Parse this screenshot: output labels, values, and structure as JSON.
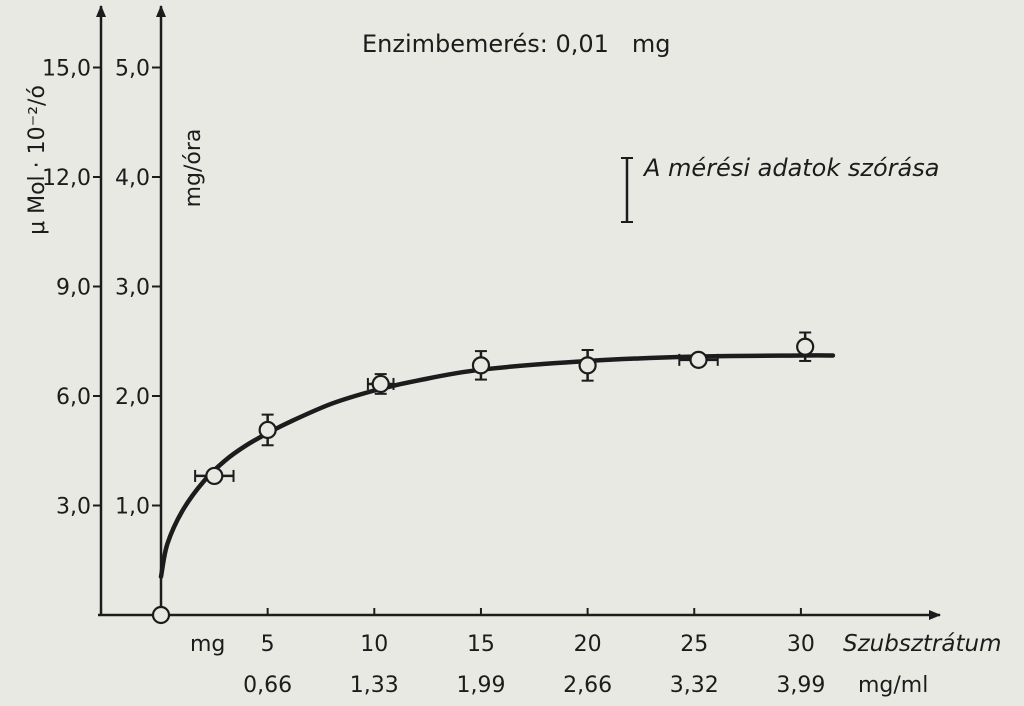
{
  "chart_data": {
    "type": "scatter",
    "title": "Enzimbemerés: 0,01   mg",
    "legend": {
      "label": "A mérési adatok szórása",
      "placement": "top-right"
    },
    "x_axis": {
      "label": "Szubsztrátum",
      "unit_label_1": "mg",
      "unit_label_2": "mg/ml",
      "ticks_mg": [
        "5",
        "10",
        "15",
        "20",
        "25",
        "30"
      ],
      "ticks_mgml": [
        "0,66",
        "1,33",
        "1,99",
        "2,66",
        "3,32",
        "3,99"
      ],
      "range": [
        0,
        35
      ]
    },
    "y_axis_outer": {
      "label": "μ Mol · 10⁻²/ó",
      "ticks": [
        "3,0",
        "6,0",
        "9,0",
        "12,0",
        "15,0"
      ]
    },
    "y_axis_inner": {
      "label": "mg/óra",
      "ticks": [
        "1,0",
        "2,0",
        "3,0",
        "4,0",
        "5,0"
      ],
      "range": [
        0,
        5.5
      ]
    },
    "series": [
      {
        "points": [
          {
            "x": 0,
            "y": 0
          },
          {
            "x": 2.5,
            "y": 1.27,
            "xerr": 0.9,
            "yerr": 0
          },
          {
            "x": 5,
            "y": 1.69,
            "xerr": 0,
            "yerr": 0.14
          },
          {
            "x": 10.3,
            "y": 2.11,
            "xerr": 0.6,
            "yerr": 0.09
          },
          {
            "x": 15,
            "y": 2.28,
            "xerr": 0,
            "yerr": 0.13
          },
          {
            "x": 20,
            "y": 2.28,
            "xerr": 0,
            "yerr": 0.14
          },
          {
            "x": 25.2,
            "y": 2.33,
            "xerr": 0.9,
            "yerr": 0
          },
          {
            "x": 30.2,
            "y": 2.45,
            "xerr": 0,
            "yerr": 0.13
          }
        ]
      }
    ],
    "fit_curve": {
      "x": [
        0,
        0.3,
        1,
        2,
        3,
        4,
        5,
        6,
        8,
        10,
        12,
        15,
        20,
        25,
        30,
        31.5
      ],
      "y": [
        0.35,
        0.65,
        0.95,
        1.22,
        1.41,
        1.55,
        1.66,
        1.76,
        1.93,
        2.05,
        2.14,
        2.24,
        2.32,
        2.36,
        2.37,
        2.37
      ]
    }
  }
}
